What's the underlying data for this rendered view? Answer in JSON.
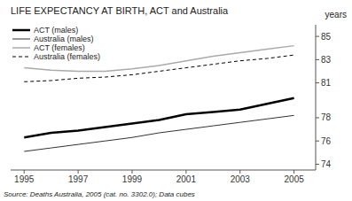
{
  "chart_data": {
    "type": "line",
    "title": "LIFE EXPECTANCY AT BIRTH, ACT and Australia",
    "y_label": "years",
    "source": "Source: Deaths Australia, 2005 (cat. no. 3302.0);  Data cubes",
    "x": [
      1995,
      1996,
      1997,
      1998,
      1999,
      2000,
      2001,
      2002,
      2003,
      2004,
      2005
    ],
    "series": [
      {
        "name": "ACT (males)",
        "color": "#000000",
        "line_style": "solid",
        "values": [
          76.3,
          76.7,
          76.9,
          77.2,
          77.5,
          77.8,
          78.3,
          78.5,
          78.7,
          79.2,
          79.7
        ]
      },
      {
        "name": "Australia (males)",
        "color": "#333333",
        "line_style": "solid",
        "values": [
          75.1,
          75.4,
          75.7,
          76.0,
          76.3,
          76.7,
          77.0,
          77.3,
          77.6,
          77.9,
          78.2
        ]
      },
      {
        "name": "ACT (females)",
        "color": "#aaaaaa",
        "line_style": "solid",
        "values": [
          82.3,
          82.1,
          82.0,
          82.0,
          82.2,
          82.5,
          82.9,
          83.3,
          83.6,
          83.9,
          84.2
        ]
      },
      {
        "name": "Australia (females)",
        "color": "#000000",
        "line_style": "dashed",
        "values": [
          81.1,
          81.2,
          81.4,
          81.5,
          81.7,
          82.0,
          82.3,
          82.6,
          82.9,
          83.1,
          83.4
        ]
      }
    ],
    "xlim": [
      1994.5,
      2005.8
    ],
    "xticks": [
      1995,
      1997,
      1999,
      2001,
      2003,
      2005
    ],
    "ylim": [
      73.5,
      86.0
    ],
    "yticks": [
      74,
      76,
      78,
      81,
      83,
      85
    ],
    "grid": false,
    "legend": "upper-left"
  }
}
